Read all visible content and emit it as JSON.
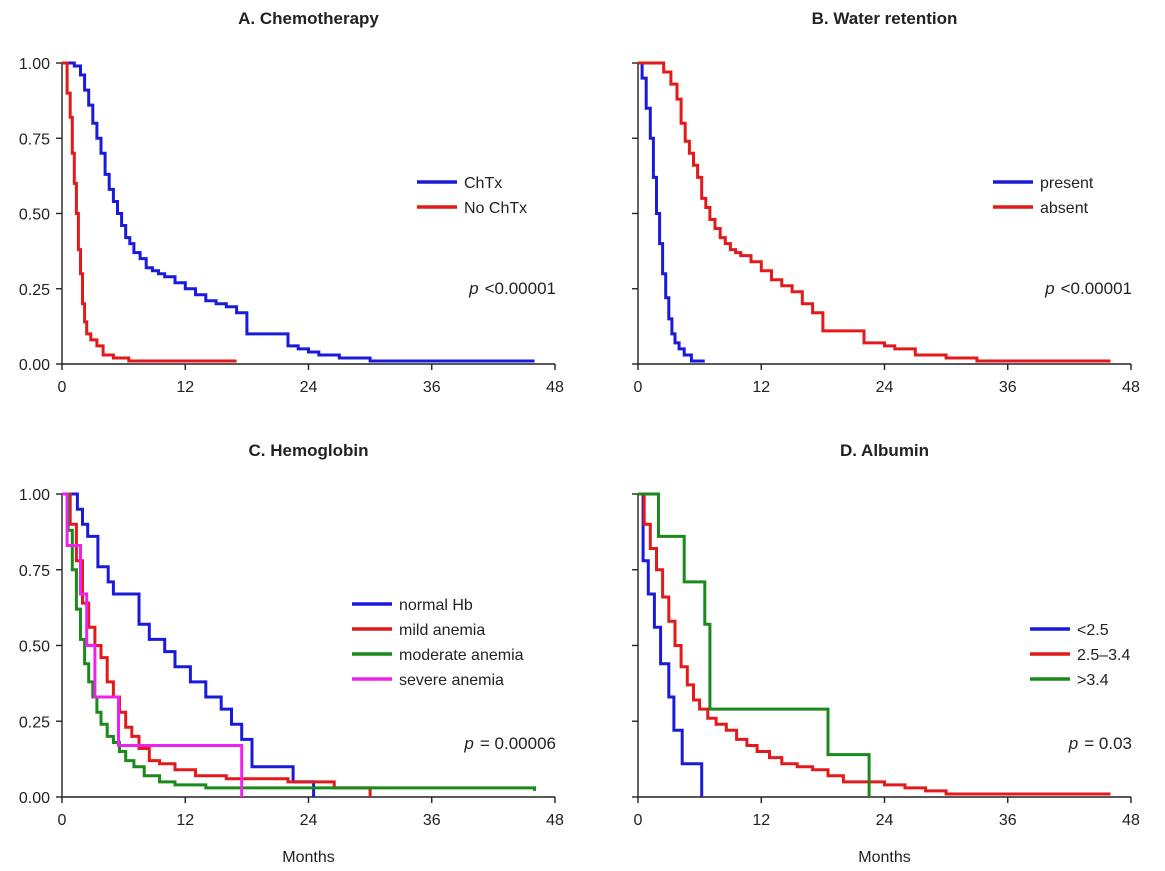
{
  "chart_data": [
    {
      "type": "line",
      "step": true,
      "title": "A. Chemotherapy",
      "xlabel": "",
      "ylabel": "",
      "xlim": [
        0,
        48
      ],
      "ylim": [
        0,
        1
      ],
      "xticks": [
        "0",
        "12",
        "24",
        "36",
        "48"
      ],
      "yticks": [
        "0.00",
        "0.25",
        "0.50",
        "0.75",
        "1.00"
      ],
      "show_yticklabels": true,
      "legend_position": "right",
      "p_prefix": "p",
      "p_value": "<0.00001",
      "series": [
        {
          "name": "ChTx",
          "color": "#1a1adc",
          "x": [
            0,
            1.2,
            1.8,
            2.2,
            2.6,
            3,
            3.4,
            3.8,
            4.2,
            4.6,
            5,
            5.4,
            5.8,
            6.2,
            6.6,
            7,
            7.6,
            8.2,
            8.8,
            9.4,
            10,
            11,
            12,
            13,
            14,
            15,
            16,
            17,
            18,
            19,
            22,
            23,
            24,
            25,
            27,
            30,
            33,
            40,
            46
          ],
          "y": [
            1,
            0.99,
            0.96,
            0.91,
            0.86,
            0.8,
            0.75,
            0.7,
            0.63,
            0.58,
            0.54,
            0.5,
            0.46,
            0.42,
            0.4,
            0.37,
            0.35,
            0.32,
            0.31,
            0.3,
            0.29,
            0.27,
            0.25,
            0.23,
            0.21,
            0.2,
            0.19,
            0.17,
            0.1,
            0.1,
            0.06,
            0.05,
            0.04,
            0.03,
            0.02,
            0.01,
            0.01,
            0.01,
            0.01
          ]
        },
        {
          "name": "No ChTx",
          "color": "#e31a1c",
          "x": [
            0,
            0.5,
            0.8,
            1,
            1.2,
            1.4,
            1.6,
            1.8,
            2,
            2.2,
            2.4,
            2.8,
            3.4,
            4,
            5,
            6.5,
            17
          ],
          "y": [
            1,
            0.9,
            0.82,
            0.7,
            0.6,
            0.5,
            0.38,
            0.3,
            0.2,
            0.14,
            0.1,
            0.08,
            0.06,
            0.03,
            0.02,
            0.01,
            0.01
          ]
        }
      ]
    },
    {
      "type": "line",
      "step": true,
      "title": "B. Water retention",
      "xlabel": "",
      "ylabel": "",
      "xlim": [
        0,
        48
      ],
      "ylim": [
        0,
        1
      ],
      "xticks": [
        "0",
        "12",
        "24",
        "36",
        "48"
      ],
      "yticks": [
        "0.00",
        "0.25",
        "0.50",
        "0.75",
        "1.00"
      ],
      "show_yticklabels": false,
      "legend_position": "right",
      "p_prefix": "p",
      "p_value": "<0.00001",
      "series": [
        {
          "name": "present",
          "color": "#1a1adc",
          "x": [
            0,
            0.4,
            0.8,
            1.2,
            1.5,
            1.8,
            2.1,
            2.4,
            2.7,
            3,
            3.3,
            3.6,
            4,
            4.5,
            5.2,
            6.5
          ],
          "y": [
            1,
            0.95,
            0.85,
            0.75,
            0.62,
            0.5,
            0.4,
            0.3,
            0.22,
            0.15,
            0.1,
            0.07,
            0.05,
            0.03,
            0.01,
            0.01
          ]
        },
        {
          "name": "absent",
          "color": "#e31a1c",
          "x": [
            0,
            2.5,
            3.2,
            3.8,
            4.2,
            4.6,
            5,
            5.4,
            5.8,
            6.2,
            6.6,
            7,
            7.5,
            8,
            8.5,
            9,
            9.5,
            10,
            11,
            12,
            13,
            14,
            15,
            16,
            17,
            18,
            19,
            22,
            24,
            25,
            27,
            30,
            33,
            40,
            46
          ],
          "y": [
            1,
            0.97,
            0.93,
            0.88,
            0.8,
            0.74,
            0.7,
            0.66,
            0.62,
            0.55,
            0.52,
            0.48,
            0.45,
            0.42,
            0.4,
            0.38,
            0.37,
            0.36,
            0.34,
            0.31,
            0.28,
            0.26,
            0.24,
            0.2,
            0.17,
            0.11,
            0.11,
            0.07,
            0.06,
            0.05,
            0.03,
            0.02,
            0.01,
            0.01,
            0.01
          ]
        }
      ]
    },
    {
      "type": "line",
      "step": true,
      "title": "C. Hemoglobin",
      "xlabel": "Months",
      "ylabel": "",
      "xlim": [
        0,
        48
      ],
      "ylim": [
        0,
        1
      ],
      "xticks": [
        "0",
        "12",
        "24",
        "36",
        "48"
      ],
      "yticks": [
        "0.00",
        "0.25",
        "0.50",
        "0.75",
        "1.00"
      ],
      "show_yticklabels": true,
      "legend_position": "right",
      "p_prefix": "p",
      "p_value": "= 0.00006",
      "series": [
        {
          "name": "normal Hb",
          "color": "#1a1adc",
          "x": [
            0,
            1.5,
            2,
            2.5,
            3.5,
            4.5,
            5,
            6,
            7.5,
            8.5,
            10,
            11,
            12.5,
            14,
            15.5,
            16.5,
            17.5,
            18.5,
            22.5,
            24.5
          ],
          "y": [
            1,
            0.95,
            0.9,
            0.86,
            0.76,
            0.71,
            0.67,
            0.67,
            0.57,
            0.52,
            0.48,
            0.43,
            0.38,
            0.33,
            0.29,
            0.24,
            0.19,
            0.1,
            0.05,
            0
          ]
        },
        {
          "name": "mild anemia",
          "color": "#e31a1c",
          "x": [
            0,
            0.8,
            1.4,
            2,
            2.6,
            3.2,
            3.8,
            4.4,
            5,
            5.6,
            6.2,
            6.8,
            7.5,
            8.5,
            9.5,
            11,
            13,
            16,
            22,
            26.5,
            30
          ],
          "y": [
            1,
            0.9,
            0.78,
            0.64,
            0.56,
            0.5,
            0.46,
            0.38,
            0.33,
            0.28,
            0.23,
            0.2,
            0.16,
            0.12,
            0.11,
            0.09,
            0.07,
            0.06,
            0.05,
            0.03,
            0
          ]
        },
        {
          "name": "moderate anemia",
          "color": "#1a8a1a",
          "x": [
            0,
            0.6,
            1,
            1.4,
            1.8,
            2.2,
            2.6,
            3,
            3.4,
            3.8,
            4.4,
            5,
            5.6,
            6.2,
            7,
            8,
            9.5,
            11,
            14,
            46
          ],
          "y": [
            1,
            0.88,
            0.75,
            0.62,
            0.52,
            0.44,
            0.38,
            0.33,
            0.28,
            0.24,
            0.2,
            0.18,
            0.15,
            0.12,
            0.1,
            0.07,
            0.05,
            0.04,
            0.03,
            0.02
          ]
        },
        {
          "name": "severe anemia",
          "color": "#ee22ee",
          "x": [
            0,
            0.5,
            1.2,
            1.8,
            2.4,
            3.2,
            3.8,
            5.5,
            7.5,
            17.5
          ],
          "y": [
            1,
            0.83,
            0.83,
            0.67,
            0.5,
            0.33,
            0.33,
            0.17,
            0.17,
            0
          ]
        }
      ]
    },
    {
      "type": "line",
      "step": true,
      "title": "D. Albumin",
      "xlabel": "Months",
      "ylabel": "",
      "xlim": [
        0,
        48
      ],
      "ylim": [
        0,
        1
      ],
      "xticks": [
        "0",
        "12",
        "24",
        "36",
        "48"
      ],
      "yticks": [
        "0.00",
        "0.25",
        "0.50",
        "0.75",
        "1.00"
      ],
      "show_yticklabels": false,
      "legend_position": "right",
      "p_prefix": "p",
      "p_value": "= 0.03",
      "series": [
        {
          "name": "<2.5",
          "color": "#1a1adc",
          "x": [
            0,
            0.5,
            1,
            1.6,
            2.2,
            3,
            3.5,
            4.3,
            6.2
          ],
          "y": [
            1,
            0.78,
            0.67,
            0.56,
            0.44,
            0.33,
            0.22,
            0.11,
            0
          ]
        },
        {
          "name": "2.5–3.4",
          "color": "#e31a1c",
          "x": [
            0,
            0.6,
            1.2,
            1.8,
            2.4,
            3,
            3.6,
            4.2,
            4.8,
            5.4,
            6,
            6.8,
            7.6,
            8.6,
            9.6,
            10.6,
            11.6,
            12.8,
            14,
            15.5,
            17,
            18.5,
            20,
            24,
            26,
            28,
            30,
            46
          ],
          "y": [
            1,
            0.9,
            0.82,
            0.75,
            0.66,
            0.58,
            0.5,
            0.43,
            0.37,
            0.32,
            0.29,
            0.26,
            0.24,
            0.22,
            0.19,
            0.17,
            0.15,
            0.13,
            0.11,
            0.1,
            0.09,
            0.07,
            0.05,
            0.04,
            0.03,
            0.02,
            0.01,
            0.01
          ]
        },
        {
          "name": ">3.4",
          "color": "#1a8a1a",
          "x": [
            0,
            2,
            4.5,
            6.5,
            7,
            18.5,
            22.5
          ],
          "y": [
            1,
            0.86,
            0.71,
            0.57,
            0.29,
            0.14,
            0
          ]
        }
      ]
    }
  ]
}
